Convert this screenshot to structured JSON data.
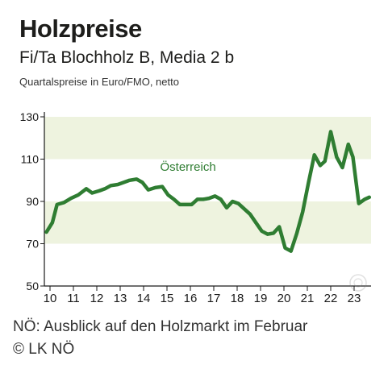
{
  "chart_data": {
    "type": "line",
    "title": "Holzpreise",
    "subtitle": "Fi/Ta Blochholz B, Media 2 b",
    "note": "Quartalspreise in Euro/FMO, netto",
    "x_ticks": [
      "10",
      "11",
      "12",
      "13",
      "14",
      "15",
      "16",
      "17",
      "18",
      "19",
      "20",
      "21",
      "22",
      "23"
    ],
    "y_ticks": [
      50,
      70,
      90,
      110,
      130
    ],
    "ylim": [
      50,
      130
    ],
    "xlim": [
      10,
      23.7
    ],
    "grid": false,
    "bands": [
      [
        70,
        90
      ],
      [
        110,
        130
      ]
    ],
    "colors": {
      "line": "#2f7d32",
      "band": "#eef3df",
      "label": "#2f7d32",
      "axis": "#1a1a1a"
    },
    "series": [
      {
        "name": "Österreich",
        "x": [
          9.85,
          10.1,
          10.3,
          10.6,
          10.9,
          11.2,
          11.55,
          11.8,
          12.1,
          12.35,
          12.6,
          12.9,
          13.15,
          13.4,
          13.7,
          13.95,
          14.2,
          14.5,
          14.8,
          15.05,
          15.3,
          15.55,
          15.8,
          16.05,
          16.3,
          16.55,
          16.8,
          17.05,
          17.3,
          17.55,
          17.8,
          18.05,
          18.3,
          18.55,
          18.8,
          19.05,
          19.3,
          19.55,
          19.8,
          20.05,
          20.3,
          20.55,
          20.8,
          21.05,
          21.3,
          21.55,
          21.75,
          22.0,
          22.25,
          22.5,
          22.75,
          22.95,
          23.2,
          23.45,
          23.65
        ],
        "y": [
          75.5,
          80,
          88.5,
          89.5,
          91.5,
          93,
          96,
          94,
          95,
          96,
          97.5,
          98,
          99,
          100,
          100.5,
          99,
          95.5,
          96.5,
          97,
          93,
          91,
          88.5,
          88.5,
          88.5,
          91,
          91,
          91.5,
          92.5,
          91,
          87,
          90,
          89,
          86.5,
          84,
          80,
          76,
          74.5,
          75,
          78,
          68,
          66.5,
          75,
          85,
          99,
          112,
          107,
          109,
          123,
          111,
          106,
          117,
          111,
          89,
          91,
          92
        ]
      }
    ]
  },
  "caption": {
    "line1": "NÖ: Ausblick auf den Holzmarkt im Februar",
    "line2": "© LK NÖ"
  }
}
